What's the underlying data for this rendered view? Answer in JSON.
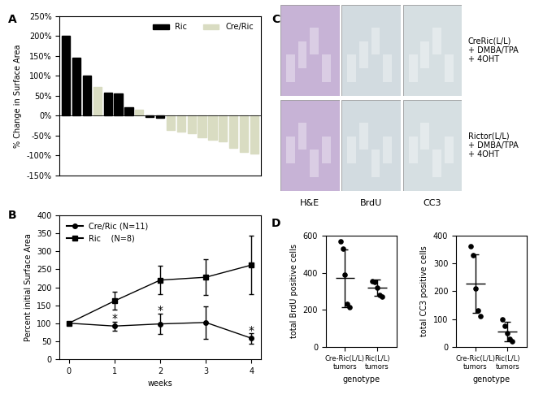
{
  "chart_data": [
    {
      "type": "bar",
      "title": "A",
      "ylabel": "% Change in Surface Area",
      "categories": [
        null,
        null,
        null,
        null,
        null,
        null,
        null,
        null,
        null,
        null,
        null,
        null,
        null,
        null,
        null,
        null,
        null,
        null,
        null
      ],
      "series": [
        {
          "name": "Ric",
          "color": "#000000",
          "values": [
            200,
            145,
            100,
            null,
            57,
            55,
            22,
            null,
            -3,
            -5,
            null,
            null,
            null,
            null,
            null,
            null,
            null,
            null,
            null
          ]
        },
        {
          "name": "Cre/Ric",
          "color": "#d9dcc2",
          "values": [
            null,
            null,
            null,
            72,
            null,
            null,
            null,
            15,
            null,
            null,
            -35,
            -40,
            -45,
            -55,
            -60,
            -65,
            -80,
            -90,
            -95
          ]
        }
      ],
      "ylim": [
        -150,
        250
      ],
      "yticks": [
        {
          "value": -150,
          "label": "-150%"
        },
        {
          "value": -100,
          "label": "-100%"
        },
        {
          "value": -50,
          "label": "-50%"
        },
        {
          "value": 0,
          "label": "0%"
        },
        {
          "value": 50,
          "label": "50%"
        },
        {
          "value": 100,
          "label": "100%"
        },
        {
          "value": 150,
          "label": "150%"
        },
        {
          "value": 200,
          "label": "200%"
        },
        {
          "value": 250,
          "label": "250%"
        }
      ],
      "legend": "upper right",
      "tick_labels": "y"
    },
    {
      "type": "line",
      "title": "B",
      "xlabel": "weeks",
      "ylabel": "Percent initial Surface Area",
      "x": [
        0,
        1,
        2,
        3,
        4
      ],
      "series": [
        {
          "name": "Cre/Ric (N=11)",
          "color": "#000000",
          "marker": "circle",
          "line_style": "solid",
          "values": [
            100,
            92,
            98,
            102,
            58
          ],
          "errors": [
            0,
            12,
            28,
            45,
            15
          ]
        },
        {
          "name": "Ric    (N=8)",
          "color": "#000000",
          "marker": "square",
          "line_style": "solid",
          "values": [
            100,
            162,
            220,
            228,
            262
          ],
          "errors": [
            0,
            25,
            40,
            50,
            82
          ]
        }
      ],
      "xlim": [
        -0.2,
        4.2
      ],
      "xticks": [
        0,
        1,
        2,
        3,
        4
      ],
      "ylim": [
        0,
        400
      ],
      "yticks": [
        0,
        50,
        100,
        150,
        200,
        250,
        300,
        350,
        400
      ],
      "legend": "upper left",
      "annotations": [
        {
          "text": "*",
          "x": 1,
          "y": 112
        },
        {
          "text": "*",
          "x": 2,
          "y": 135
        },
        {
          "text": "*",
          "x": 4,
          "y": 80
        }
      ]
    },
    {
      "type": "image_grid",
      "title": "C",
      "columns": [
        "H&E",
        "BrdU",
        "CC3"
      ],
      "rows": [
        "CreRic(L/L)\n+ DMBA/TPA\n+ 4OHT",
        "Rictor(L/L)\n+ DMBA/TPA\n+ 4OHT"
      ]
    },
    {
      "type": "scatter",
      "title": "D",
      "xlabel": "genotype",
      "ylabel": "total BrdU positive cells",
      "categories": [
        "Cre-Ric(L/L)\ntumors",
        "Ric(L/L)\ntumors"
      ],
      "values": [
        [
          570,
          530,
          390,
          230,
          215
        ],
        [
          355,
          350,
          320,
          280,
          270
        ]
      ],
      "means": [
        370,
        320
      ],
      "errors": [
        155,
        45
      ],
      "ylim": [
        0,
        600
      ],
      "yticks": [
        0,
        200,
        400,
        600
      ],
      "color": "#000000"
    },
    {
      "type": "scatter",
      "xlabel": "genotype",
      "ylabel": "total CC3 positive cells",
      "categories": [
        "Cre-Ric(L/L)\ntumors",
        "Ric(L/L)\ntumors"
      ],
      "values": [
        [
          360,
          330,
          210,
          130,
          110
        ],
        [
          100,
          75,
          50,
          30,
          20
        ]
      ],
      "means": [
        228,
        55
      ],
      "errors": [
        105,
        35
      ],
      "ylim": [
        0,
        400
      ],
      "yticks": [
        0,
        100,
        200,
        300,
        400
      ],
      "color": "#000000"
    }
  ]
}
